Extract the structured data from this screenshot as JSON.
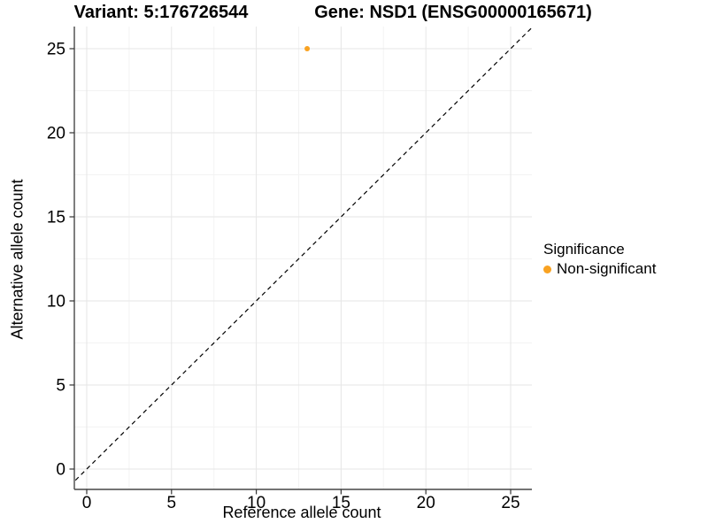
{
  "titles": {
    "variant": "Variant: 5:176726544",
    "gene": "Gene: NSD1 (ENSG00000165671)"
  },
  "chart_data": {
    "type": "scatter",
    "xlabel": "Reference allele count",
    "ylabel": "Alternative allele count",
    "xlim": [
      -0.75,
      26.25
    ],
    "ylim": [
      -1.2,
      26.3
    ],
    "x_ticks": [
      0,
      5,
      10,
      15,
      20,
      25
    ],
    "y_ticks": [
      0,
      5,
      10,
      15,
      20,
      25
    ],
    "x_minor_ticks": [
      2.5,
      7.5,
      12.5,
      17.5,
      22.5
    ],
    "y_minor_ticks": [
      2.5,
      7.5,
      12.5,
      17.5,
      22.5
    ],
    "grid": true,
    "points": [
      {
        "x": 13,
        "y": 25,
        "series": "Non-significant"
      }
    ],
    "reference_line": {
      "kind": "identity",
      "slope": 1,
      "intercept": 0,
      "style": "dashed"
    },
    "legend": {
      "title": "Significance",
      "position": "right",
      "entries": [
        {
          "label": "Non-significant",
          "color": "#F9A221"
        }
      ]
    }
  },
  "colors": {
    "background": "#FFFFFF",
    "point": "#F9A221",
    "grid_major": "#E6E6E6",
    "grid_minor": "#F3F3F3",
    "axis_line": "#474747",
    "tick_mark": "#333333",
    "tick_label": "#000000",
    "dashed_line": "#000000"
  }
}
